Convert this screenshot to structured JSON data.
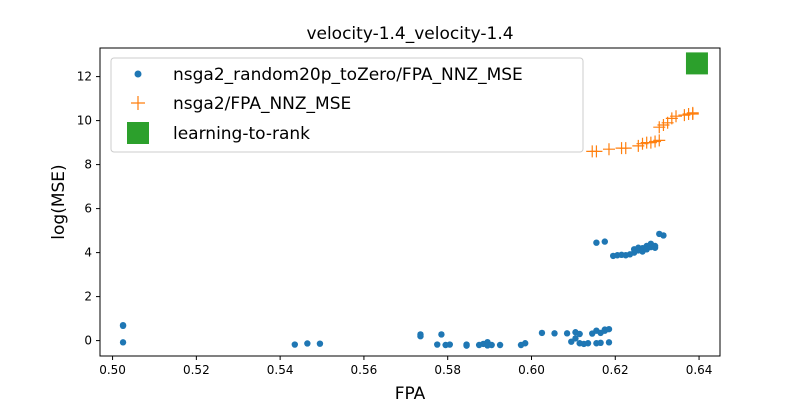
{
  "chart_data": {
    "type": "scatter",
    "title": "velocity-1.4_velocity-1.4",
    "xlabel": "FPA",
    "ylabel": "log(MSE)",
    "xlim": [
      0.497,
      0.645
    ],
    "ylim": [
      -0.7,
      13.3
    ],
    "xticks": [
      0.5,
      0.52,
      0.54,
      0.56,
      0.58,
      0.6,
      0.62,
      0.64
    ],
    "xtick_labels": [
      "0.50",
      "0.52",
      "0.54",
      "0.56",
      "0.58",
      "0.60",
      "0.62",
      "0.64"
    ],
    "yticks": [
      0,
      2,
      4,
      6,
      8,
      10,
      12
    ],
    "ytick_labels": [
      "0",
      "2",
      "4",
      "6",
      "8",
      "10",
      "12"
    ],
    "legend_position": "upper-left",
    "grid": false,
    "series": [
      {
        "name": "nsga2_random20p_toZero/FPA_NNZ_MSE",
        "marker": "circle",
        "color": "#1f77b4",
        "points": [
          [
            0.5025,
            0.7
          ],
          [
            0.5025,
            0.67
          ],
          [
            0.5025,
            -0.08
          ],
          [
            0.5435,
            -0.18
          ],
          [
            0.5465,
            -0.13
          ],
          [
            0.5495,
            -0.14
          ],
          [
            0.5735,
            0.28
          ],
          [
            0.5735,
            0.2
          ],
          [
            0.5775,
            -0.18
          ],
          [
            0.5785,
            0.28
          ],
          [
            0.5795,
            -0.2
          ],
          [
            0.5805,
            -0.18
          ],
          [
            0.5845,
            -0.18
          ],
          [
            0.5845,
            -0.23
          ],
          [
            0.5875,
            -0.2
          ],
          [
            0.5885,
            -0.15
          ],
          [
            0.5895,
            -0.07
          ],
          [
            0.5895,
            -0.22
          ],
          [
            0.5905,
            -0.2
          ],
          [
            0.5925,
            -0.2
          ],
          [
            0.5975,
            -0.2
          ],
          [
            0.5985,
            -0.12
          ],
          [
            0.6025,
            0.35
          ],
          [
            0.6055,
            0.33
          ],
          [
            0.6085,
            0.33
          ],
          [
            0.6095,
            -0.05
          ],
          [
            0.6105,
            0.38
          ],
          [
            0.6105,
            0.1
          ],
          [
            0.6115,
            0.3
          ],
          [
            0.6115,
            -0.12
          ],
          [
            0.6125,
            -0.15
          ],
          [
            0.6135,
            -0.12
          ],
          [
            0.6145,
            0.32
          ],
          [
            0.6155,
            -0.12
          ],
          [
            0.6155,
            0.45
          ],
          [
            0.6165,
            0.35
          ],
          [
            0.6165,
            -0.1
          ],
          [
            0.6175,
            0.5
          ],
          [
            0.6175,
            0.45
          ],
          [
            0.6185,
            0.52
          ],
          [
            0.6185,
            -0.08
          ],
          [
            0.6155,
            4.45
          ],
          [
            0.6175,
            4.5
          ],
          [
            0.6195,
            3.85
          ],
          [
            0.6205,
            3.88
          ],
          [
            0.6215,
            3.9
          ],
          [
            0.6225,
            3.88
          ],
          [
            0.6235,
            3.92
          ],
          [
            0.6245,
            4.0
          ],
          [
            0.6245,
            4.15
          ],
          [
            0.6255,
            4.1
          ],
          [
            0.6255,
            4.22
          ],
          [
            0.6265,
            4.05
          ],
          [
            0.6265,
            4.2
          ],
          [
            0.6275,
            4.3
          ],
          [
            0.6275,
            4.15
          ],
          [
            0.6285,
            4.25
          ],
          [
            0.6285,
            4.4
          ],
          [
            0.6295,
            4.22
          ],
          [
            0.6295,
            4.3
          ],
          [
            0.6305,
            4.85
          ],
          [
            0.6315,
            4.78
          ]
        ]
      },
      {
        "name": "nsga2/FPA_NNZ_MSE",
        "marker": "plus",
        "color": "#ff7f0e",
        "points": [
          [
            0.6145,
            8.6
          ],
          [
            0.6155,
            8.6
          ],
          [
            0.6185,
            8.7
          ],
          [
            0.6215,
            8.75
          ],
          [
            0.6225,
            8.75
          ],
          [
            0.6255,
            8.85
          ],
          [
            0.6265,
            8.95
          ],
          [
            0.6275,
            9.0
          ],
          [
            0.6285,
            9.0
          ],
          [
            0.6295,
            9.05
          ],
          [
            0.6305,
            9.1
          ],
          [
            0.6305,
            9.7
          ],
          [
            0.6315,
            9.8
          ],
          [
            0.6325,
            9.9
          ],
          [
            0.6335,
            10.1
          ],
          [
            0.6345,
            10.2
          ],
          [
            0.6365,
            10.25
          ],
          [
            0.6375,
            10.3
          ],
          [
            0.6385,
            10.3
          ],
          [
            0.6385,
            10.35
          ]
        ]
      },
      {
        "name": "learning-to-rank",
        "marker": "square",
        "color": "#2ca02c",
        "points": [
          [
            0.6395,
            12.6
          ]
        ]
      }
    ]
  }
}
